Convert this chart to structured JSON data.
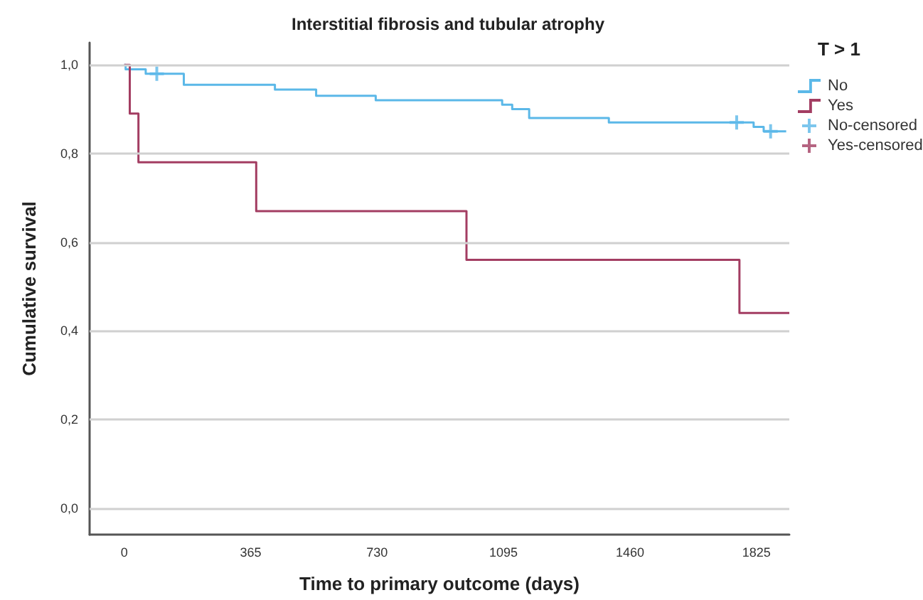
{
  "chart_data": {
    "type": "step",
    "title": "Interstitial fibrosis and tubular atrophy",
    "xlabel": "Time to primary outcome (days)",
    "ylabel": "Cumulative survival",
    "legend_title": "T > 1",
    "series": [
      {
        "name": "No",
        "color": "#5bb8e8",
        "x": [
          0,
          4,
          62,
          172,
          435,
          554,
          726,
          1091,
          1120,
          1169,
          1399,
          1817,
          1846,
          1911
        ],
        "values": [
          1.0,
          0.99,
          0.98,
          0.955,
          0.944,
          0.93,
          0.92,
          0.91,
          0.9,
          0.88,
          0.87,
          0.86,
          0.85,
          0.85
        ]
      },
      {
        "name": "Yes",
        "color": "#a33d62",
        "x": [
          0,
          16,
          41,
          381,
          988,
          1776,
          1920
        ],
        "values": [
          1.0,
          0.89,
          0.78,
          0.67,
          0.56,
          0.44,
          0.44
        ]
      },
      {
        "name": "No-censored",
        "type": "scatter",
        "marker": "cross",
        "color": "#5bb8e8",
        "x": [
          94,
          1768,
          1866
        ],
        "values": [
          0.98,
          0.87,
          0.85
        ]
      },
      {
        "name": "Yes-censored",
        "type": "scatter",
        "marker": "cross",
        "color": "#a33d62"
      }
    ],
    "xlim": [
      -100,
      1920
    ],
    "xticks": [
      0,
      365,
      730,
      1095,
      1460,
      1825
    ],
    "ylim": [
      -0.06,
      1.05
    ],
    "yticks": [
      {
        "value": 0,
        "label": "0,0"
      },
      {
        "value": 0.2,
        "label": "0,2"
      },
      {
        "value": 0.4,
        "label": "0,4"
      },
      {
        "value": 0.6,
        "label": "0,6"
      },
      {
        "value": 0.8,
        "label": "0,8"
      },
      {
        "value": 1.0,
        "label": "1,0"
      }
    ],
    "grid": "y",
    "legend": "right",
    "marker": "none",
    "line_style": "solid"
  }
}
